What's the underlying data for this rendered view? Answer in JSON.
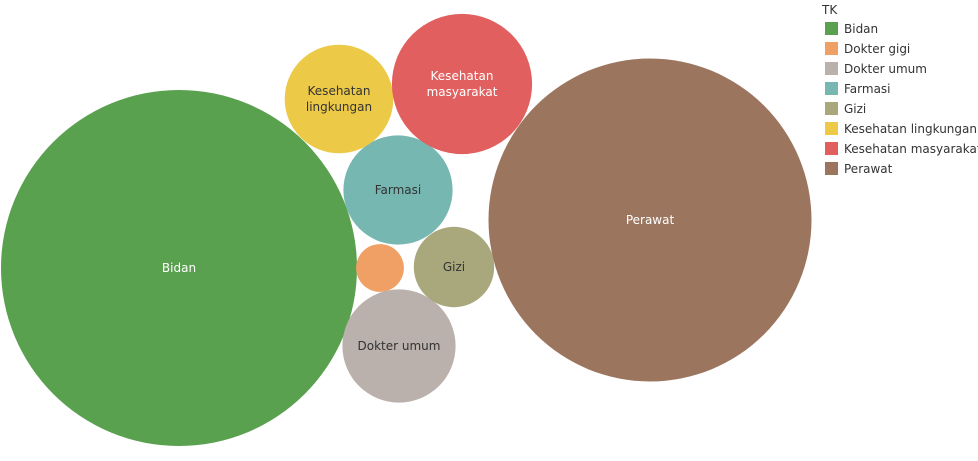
{
  "chart_data": {
    "type": "bubble",
    "legend": {
      "title": "TK",
      "position": "right"
    },
    "series": [
      {
        "name": "Bidan",
        "value": 1000,
        "color": "#59a14f",
        "label_lines": [
          "Bidan"
        ],
        "label_color": "#ffffff"
      },
      {
        "name": "Dokter gigi",
        "value": 18,
        "color": "#f1a065",
        "label_lines": [],
        "label_color": "#333333"
      },
      {
        "name": "Dokter umum",
        "value": 101,
        "color": "#bab0ac",
        "label_lines": [
          "Dokter umum"
        ],
        "label_color": "#333333"
      },
      {
        "name": "Farmasi",
        "value": 94,
        "color": "#76b7b2",
        "label_lines": [
          "Farmasi"
        ],
        "label_color": "#333333"
      },
      {
        "name": "Gizi",
        "value": 51,
        "color": "#a8a87c",
        "label_lines": [
          "Gizi"
        ],
        "label_color": "#333333"
      },
      {
        "name": "Kesehatan lingkungan",
        "value": 93,
        "color": "#edc948",
        "label_lines": [
          "Kesehatan",
          "lingkungan"
        ],
        "label_color": "#333333"
      },
      {
        "name": "Kesehatan masyarakat",
        "value": 155,
        "color": "#e15f5f",
        "label_lines": [
          "Kesehatan",
          "masyarakat"
        ],
        "label_color": "#ffffff"
      },
      {
        "name": "Perawat",
        "value": 823,
        "color": "#9c755f",
        "label_lines": [
          "Perawat"
        ],
        "label_color": "#ffffff"
      }
    ]
  }
}
